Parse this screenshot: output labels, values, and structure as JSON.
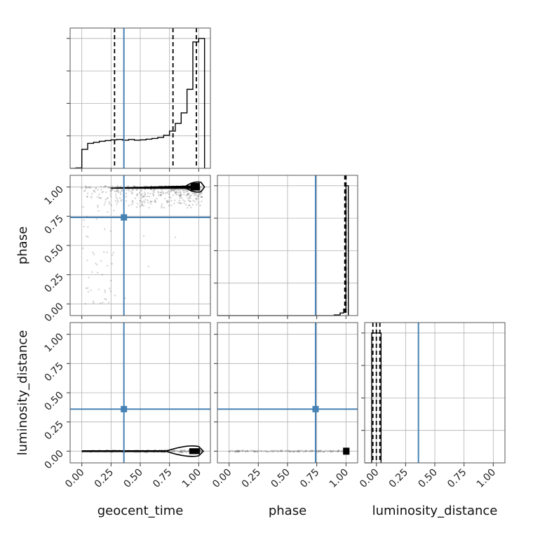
{
  "chart_data": {
    "type": "corner",
    "parameters": [
      "geocent_time",
      "phase",
      "luminosity_distance"
    ],
    "truths": {
      "geocent_time": 0.36,
      "phase": 0.74,
      "luminosity_distance": 0.36
    },
    "axis_range": [
      -0.1,
      1.1
    ],
    "ticks": [
      0.0,
      0.25,
      0.5,
      0.75,
      1.0
    ],
    "tick_labels": [
      "0.00",
      "0.25",
      "0.50",
      "0.75",
      "1.00"
    ],
    "grid": true,
    "histograms": [
      {
        "parameter": "geocent_time",
        "bin_edges": [
          -0.05,
          0.0,
          0.05,
          0.1,
          0.15,
          0.2,
          0.25,
          0.3,
          0.35,
          0.4,
          0.45,
          0.5,
          0.55,
          0.6,
          0.65,
          0.7,
          0.75,
          0.8,
          0.85,
          0.9,
          0.95,
          1.0,
          1.05
        ],
        "counts": [
          0.01,
          0.54,
          0.71,
          0.74,
          0.77,
          0.79,
          0.81,
          0.82,
          0.8,
          0.82,
          0.8,
          0.81,
          0.83,
          0.85,
          0.88,
          0.94,
          1.06,
          1.28,
          1.58,
          2.25,
          3.6,
          3.7
        ],
        "quantiles": [
          0.28,
          0.78,
          0.98
        ]
      },
      {
        "parameter": "phase",
        "bin_edges": [
          0.9,
          0.95,
          0.98,
          1.0,
          1.02
        ],
        "counts": [
          0.005,
          0.02,
          0.05,
          1.0
        ],
        "quantiles": [
          0.99,
          0.995,
          1.0
        ]
      },
      {
        "parameter": "luminosity_distance",
        "bin_edges": [
          -0.04,
          0.04
        ],
        "counts": [
          1.0
        ],
        "quantiles": [
          -0.03,
          0.0,
          0.03
        ]
      }
    ]
  }
}
